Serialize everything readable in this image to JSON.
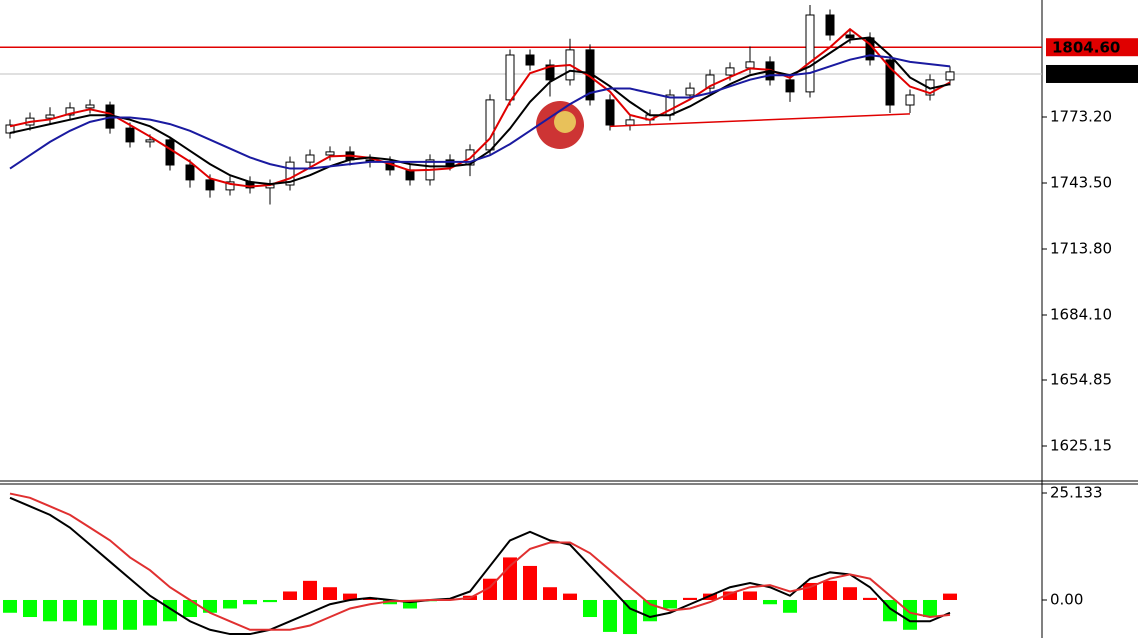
{
  "chart_data": [
    {
      "type": "candlestick",
      "open": [
        1766.0,
        1769.6,
        1772.7,
        1774.1,
        1777.3,
        1778.6,
        1768.2,
        1762.0,
        1762.9,
        1751.6,
        1744.9,
        1740.4,
        1744.0,
        1741.3,
        1742.6,
        1752.9,
        1756.1,
        1757.5,
        1753.9,
        1753.0,
        1749.4,
        1744.9,
        1753.9,
        1751.6,
        1758.4,
        1780.9,
        1801.1,
        1796.6,
        1789.9,
        1803.4,
        1780.9,
        1769.6,
        1771.9,
        1774.1,
        1783.1,
        1786.2,
        1792.1,
        1795.3,
        1798.0,
        1789.9,
        1784.5,
        1819.1,
        1810.1,
        1808.8,
        1798.9,
        1778.6,
        1783.1,
        1789.9
      ],
      "high": [
        1772.1,
        1775.2,
        1777.6,
        1779.8,
        1781.1,
        1780.1,
        1770.7,
        1765.4,
        1764.4,
        1754.1,
        1747.4,
        1746.5,
        1746.5,
        1745.1,
        1755.4,
        1758.6,
        1760.0,
        1760.0,
        1756.4,
        1755.5,
        1751.9,
        1756.4,
        1756.4,
        1760.9,
        1783.4,
        1803.6,
        1803.6,
        1799.1,
        1808.4,
        1805.9,
        1783.4,
        1774.4,
        1776.6,
        1785.6,
        1788.7,
        1794.6,
        1797.8,
        1805.0,
        1800.5,
        1792.4,
        1823.6,
        1821.6,
        1812.6,
        1811.3,
        1801.4,
        1785.6,
        1792.4,
        1796.0
      ],
      "low": [
        1763.5,
        1767.1,
        1770.2,
        1771.6,
        1774.8,
        1765.7,
        1759.5,
        1759.5,
        1749.1,
        1741.4,
        1736.9,
        1737.9,
        1738.8,
        1733.8,
        1740.1,
        1750.4,
        1753.6,
        1751.4,
        1750.5,
        1746.9,
        1742.4,
        1742.4,
        1749.1,
        1746.6,
        1755.9,
        1778.4,
        1794.1,
        1782.4,
        1787.4,
        1778.4,
        1767.1,
        1767.1,
        1769.4,
        1771.6,
        1780.6,
        1783.7,
        1789.6,
        1792.8,
        1787.4,
        1780.0,
        1782.0,
        1807.6,
        1806.3,
        1796.4,
        1775.0,
        1775.0,
        1780.6,
        1787.4
      ],
      "close": [
        1769.6,
        1772.7,
        1774.1,
        1777.3,
        1778.6,
        1768.2,
        1762.0,
        1762.9,
        1751.6,
        1744.9,
        1740.4,
        1744.0,
        1741.3,
        1742.6,
        1752.9,
        1756.1,
        1757.5,
        1753.9,
        1753.0,
        1749.4,
        1744.9,
        1753.9,
        1751.6,
        1758.4,
        1780.9,
        1801.1,
        1796.6,
        1789.9,
        1803.4,
        1780.9,
        1769.6,
        1771.9,
        1774.1,
        1783.1,
        1786.2,
        1792.1,
        1795.3,
        1798.0,
        1789.9,
        1784.5,
        1819.1,
        1810.1,
        1808.8,
        1798.9,
        1778.6,
        1783.1,
        1789.9,
        1793.5
      ],
      "up_color": "#ffffff",
      "down_color": "#000000",
      "candle_stroke": "#000000",
      "series": [
        {
          "color": "#e00000",
          "values": [
            1769.0,
            1771.0,
            1772.1,
            1774.7,
            1776.7,
            1774.7,
            1769.6,
            1764.4,
            1758.8,
            1753.1,
            1745.6,
            1743.1,
            1741.9,
            1742.6,
            1745.6,
            1750.5,
            1755.5,
            1755.8,
            1754.8,
            1752.1,
            1749.1,
            1749.4,
            1750.1,
            1754.6,
            1763.6,
            1780.1,
            1792.9,
            1795.9,
            1796.6,
            1791.4,
            1784.6,
            1774.1,
            1771.9,
            1776.4,
            1781.1,
            1787.1,
            1791.2,
            1795.1,
            1794.4,
            1790.8,
            1797.8,
            1804.6,
            1812.7,
            1805.9,
            1795.4,
            1786.9,
            1783.9,
            1788.8
          ]
        },
        {
          "color": "#000000",
          "values": [
            1766,
            1768,
            1770,
            1772,
            1774,
            1774,
            1772,
            1769,
            1764,
            1758,
            1752,
            1747,
            1744,
            1743,
            1744,
            1747,
            1751,
            1754,
            1755,
            1754,
            1752,
            1751,
            1751,
            1752,
            1758,
            1768,
            1780,
            1789,
            1794,
            1793,
            1787,
            1780,
            1774,
            1774,
            1778,
            1783,
            1788,
            1792,
            1794,
            1792,
            1796,
            1802,
            1808,
            1809,
            1801,
            1791,
            1786,
            1788
          ]
        },
        {
          "color": "#1a1aa0",
          "values": [
            1750,
            1756,
            1762,
            1767,
            1771,
            1773,
            1773,
            1772,
            1770,
            1767,
            1763,
            1759,
            1755,
            1752,
            1750,
            1750,
            1751,
            1752,
            1753,
            1753,
            1753,
            1753,
            1753,
            1753,
            1756,
            1761,
            1767,
            1773,
            1779,
            1784,
            1786,
            1786,
            1784,
            1782,
            1782,
            1784,
            1787,
            1790,
            1792,
            1792,
            1793,
            1796,
            1799,
            1801,
            1800,
            1798,
            1797,
            1796
          ]
        }
      ],
      "trendline": {
        "x": [
          30,
          45
        ],
        "values": [
          1769.0,
          1774.6
        ],
        "color": "#e00000"
      },
      "levels": [
        {
          "value": 1804.6,
          "label": "1804.60",
          "color": "#e00000",
          "line_color": "#e00000"
        },
        {
          "value": 1792.56,
          "label": "1792.56",
          "color": "#000000",
          "line_color": "#c0c0c0"
        }
      ],
      "ylim": [
        1609.85,
        1825.85
      ],
      "yticks": [
        {
          "value": 1773.2,
          "label": "1773.20"
        },
        {
          "value": 1743.5,
          "label": "1743.50"
        },
        {
          "value": 1713.8,
          "label": "1713.80"
        },
        {
          "value": 1684.1,
          "label": "1684.10"
        },
        1654.85,
        1625.15
      ]
    },
    {
      "type": "macd",
      "histogram": [
        -3,
        -4,
        -5,
        -5,
        -6,
        -7,
        -7,
        -6,
        -5,
        -4,
        -3,
        -2,
        -1,
        -0.5,
        2,
        4.5,
        3,
        1.5,
        0.5,
        -1,
        -2,
        -0.3,
        0.3,
        1,
        5,
        10,
        8,
        3,
        1.5,
        -4,
        -7.5,
        -8,
        -5,
        -2,
        0.5,
        1.5,
        2,
        2,
        -1,
        -3,
        4,
        4.5,
        3,
        0.5,
        -5,
        -7,
        -4,
        1.5
      ],
      "positive_color": "#ff0000",
      "negative_color": "#00ff00",
      "series": [
        {
          "color": "#000000",
          "values": [
            24,
            22,
            20,
            17,
            13,
            9,
            5,
            1,
            -2,
            -5,
            -7,
            -8,
            -8,
            -7,
            -5,
            -3,
            -1,
            0,
            0.5,
            0,
            -0.5,
            0,
            0.3,
            2,
            8,
            14,
            16,
            14,
            13,
            8,
            3,
            -2,
            -4,
            -3,
            -1,
            1,
            3,
            4,
            3,
            1,
            5,
            6.5,
            6,
            3,
            -2,
            -5,
            -5,
            -3
          ]
        },
        {
          "color": "#e03030",
          "values": [
            25,
            24,
            22,
            20,
            17,
            14,
            10,
            7,
            3,
            0,
            -3,
            -5,
            -7,
            -7,
            -7,
            -6,
            -4,
            -2,
            -1,
            -0.3,
            -0.2,
            0,
            0,
            0.5,
            3,
            8,
            12,
            13.5,
            13.5,
            11,
            7,
            3,
            -1,
            -2.5,
            -2,
            -0.5,
            1.5,
            3,
            3.5,
            2,
            3,
            5,
            6,
            5,
            1,
            -3,
            -4,
            -3.5
          ]
        }
      ],
      "ylim": [
        -8.93,
        27.25
      ],
      "yticks": [
        25.133,
        {
          "value": 0,
          "label": "0.00"
        }
      ]
    }
  ]
}
